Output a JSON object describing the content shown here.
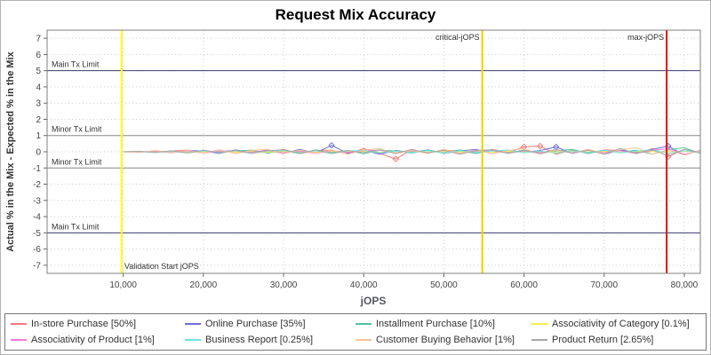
{
  "title": "Request Mix Accuracy",
  "chart_data": {
    "type": "line",
    "title": "Request Mix Accuracy",
    "xlabel": "jOPS",
    "ylabel": "Actual % in the Mix - Expected % in the Mix",
    "xlim": [
      500,
      82000
    ],
    "ylim": [
      -7.5,
      7.5
    ],
    "grid": true,
    "legend_position": "bottom",
    "x_ticks": [
      10000,
      20000,
      30000,
      40000,
      50000,
      60000,
      70000,
      80000
    ],
    "x_tick_labels": [
      "10,000",
      "20,000",
      "30,000",
      "40,000",
      "50,000",
      "60,000",
      "70,000",
      "80,000"
    ],
    "y_ticks": [
      7,
      6,
      5,
      4,
      3,
      2,
      1,
      0,
      -1,
      -2,
      -3,
      -4,
      -5,
      -6,
      -7
    ],
    "y_tick_labels": [
      "7",
      "6",
      "5",
      "4",
      "3",
      "2",
      "1",
      "0",
      "-1",
      "-2",
      "-3",
      "-4",
      "-5",
      "-6",
      "-7"
    ],
    "x_start": 10000,
    "x_step": 2000,
    "reference_lines": {
      "horizontal": [
        {
          "y": 5,
          "label": "Main Tx Limit",
          "color": "#3c3c6e"
        },
        {
          "y": 1,
          "label": "Minor Tx Limit",
          "color": "#8c8c8c"
        },
        {
          "y": -1,
          "label": "Minor Tx Limit",
          "color": "#8c8c8c"
        },
        {
          "y": -5,
          "label": "Main Tx Limit",
          "color": "#3c3c6e"
        }
      ],
      "vertical": [
        {
          "x": 9800,
          "label": "Validation Start jOPS",
          "color": "#ffff00",
          "label_pos": "bottom-right"
        },
        {
          "x": 54800,
          "label": "critical-jOPS",
          "color": "#e8d400",
          "label_pos": "top-left"
        },
        {
          "x": 77800,
          "label": "max-jOPS",
          "color": "#e01010",
          "label_pos": "top-left"
        }
      ]
    },
    "series": [
      {
        "name": "In-store Purchase",
        "label": "In-store Purchase [50%]",
        "color": "#f27c7c",
        "values": [
          0,
          0.02,
          -0.03,
          0.05,
          0.1,
          -0.08,
          0.12,
          -0.1,
          0.06,
          -0.05,
          0.15,
          -0.12,
          0.08,
          0.1,
          -0.15,
          0.2,
          -0.1,
          -0.45,
          0.12,
          -0.08,
          0.1,
          0.05,
          -0.1,
          0.15,
          -0.05,
          0.3,
          0.35,
          -0.15,
          0.1,
          -0.1,
          0.12,
          0.08,
          -0.12,
          0.2,
          -0.3,
          0.15,
          -0.05
        ]
      },
      {
        "name": "Online Purchase",
        "label": "Online Purchase [35%]",
        "color": "#6f6fd8",
        "values": [
          0,
          -0.02,
          0.04,
          -0.06,
          0.08,
          0.05,
          -0.1,
          0.12,
          -0.05,
          0.1,
          -0.12,
          0.15,
          -0.08,
          0.4,
          -0.1,
          0.1,
          -0.15,
          0.08,
          -0.05,
          0.12,
          -0.1,
          0.05,
          0.15,
          -0.12,
          0.1,
          -0.05,
          0.08,
          0.3,
          -0.1,
          0.12,
          -0.15,
          0.1,
          -0.05,
          0.15,
          0.35,
          -0.2,
          0.1
        ]
      },
      {
        "name": "Installment Purchase",
        "label": "Installment Purchase [10%]",
        "color": "#4fc3a1",
        "values": [
          0,
          0.01,
          -0.02,
          0.03,
          -0.05,
          0.08,
          -0.06,
          0.05,
          0.1,
          -0.08,
          0.06,
          -0.1,
          0.12,
          -0.05,
          0.08,
          -0.12,
          0.1,
          0.05,
          -0.08,
          0.1,
          -0.05,
          0.12,
          -0.1,
          0.08,
          -0.06,
          0.1,
          -0.12,
          0.05,
          0.15,
          -0.1,
          0.08,
          -0.05,
          0.1,
          -0.15,
          0.12,
          0.25,
          -0.1
        ]
      },
      {
        "name": "Associativity of Category",
        "label": "Associativity of Category [0.1%]",
        "color": "#f2ef49",
        "values": [
          0,
          0.01,
          -0.01,
          0.02,
          -0.02,
          0.01,
          0.03,
          -0.02,
          0.01,
          -0.03,
          0.02,
          0.01,
          -0.02,
          0.03,
          -0.01,
          0.02,
          -0.03,
          0.01,
          0.02,
          -0.02,
          0.01,
          -0.01,
          0.03,
          -0.02,
          0.02,
          -0.01,
          0.01,
          -0.02,
          0.03,
          -0.01,
          0.02,
          -0.03,
          0.01,
          0.02,
          -0.01,
          0.03,
          -0.02
        ]
      },
      {
        "name": "Associativity of Product",
        "label": "Associativity of Product [1%]",
        "color": "#f07ad6",
        "values": [
          0,
          -0.03,
          0.05,
          -0.04,
          0.06,
          -0.08,
          0.04,
          0.07,
          -0.05,
          0.08,
          -0.06,
          0.05,
          -0.1,
          0.08,
          -0.04,
          0.06,
          0.1,
          -0.08,
          0.05,
          -0.06,
          0.08,
          -0.1,
          0.04,
          0.06,
          -0.08,
          0.05,
          -0.04,
          0.1,
          -0.06,
          0.08,
          -0.05,
          0.06,
          -0.1,
          0.08,
          0.2,
          -0.15,
          0.05
        ]
      },
      {
        "name": "Business Report",
        "label": "Business Report [0.25%]",
        "color": "#6fe3e3",
        "values": [
          0,
          0.02,
          -0.04,
          0.03,
          -0.06,
          0.05,
          -0.03,
          0.06,
          -0.08,
          0.04,
          0.07,
          -0.05,
          0.06,
          -0.1,
          0.05,
          0.08,
          -0.06,
          0.04,
          -0.05,
          0.07,
          -0.08,
          0.06,
          -0.04,
          0.05,
          0.1,
          -0.06,
          0.04,
          -0.08,
          0.06,
          -0.05,
          0.1,
          -0.07,
          0.05,
          0.12,
          -0.1,
          0.06,
          -0.04
        ]
      },
      {
        "name": "Customer Buying Behavior",
        "label": "Customer Buying Behavior [1%]",
        "color": "#f8c39b",
        "values": [
          0,
          -0.05,
          0.08,
          -0.06,
          0.1,
          -0.08,
          0.12,
          -0.1,
          0.08,
          0.15,
          -0.12,
          0.1,
          -0.08,
          0.12,
          -0.15,
          0.1,
          0.2,
          -0.12,
          0.08,
          -0.1,
          0.15,
          -0.08,
          0.1,
          -0.12,
          0.08,
          0.2,
          -0.15,
          0.1,
          -0.08,
          0.15,
          -0.1,
          0.12,
          0.25,
          -0.15,
          0.1,
          -0.2,
          0.08
        ]
      },
      {
        "name": "Product Return",
        "label": "Product Return [2.65%]",
        "color": "#a9a9a9",
        "values": [
          0,
          0.03,
          -0.05,
          0.06,
          -0.08,
          0.1,
          -0.06,
          0.08,
          -0.1,
          0.06,
          0.12,
          -0.08,
          0.1,
          -0.12,
          0.08,
          -0.06,
          0.12,
          -0.1,
          0.15,
          -0.08,
          0.1,
          -0.15,
          0.08,
          0.12,
          -0.1,
          0.08,
          -0.12,
          0.15,
          -0.08,
          0.1,
          -0.15,
          0.2,
          -0.1,
          0.12,
          -0.25,
          0.15,
          -0.08
        ]
      }
    ]
  }
}
